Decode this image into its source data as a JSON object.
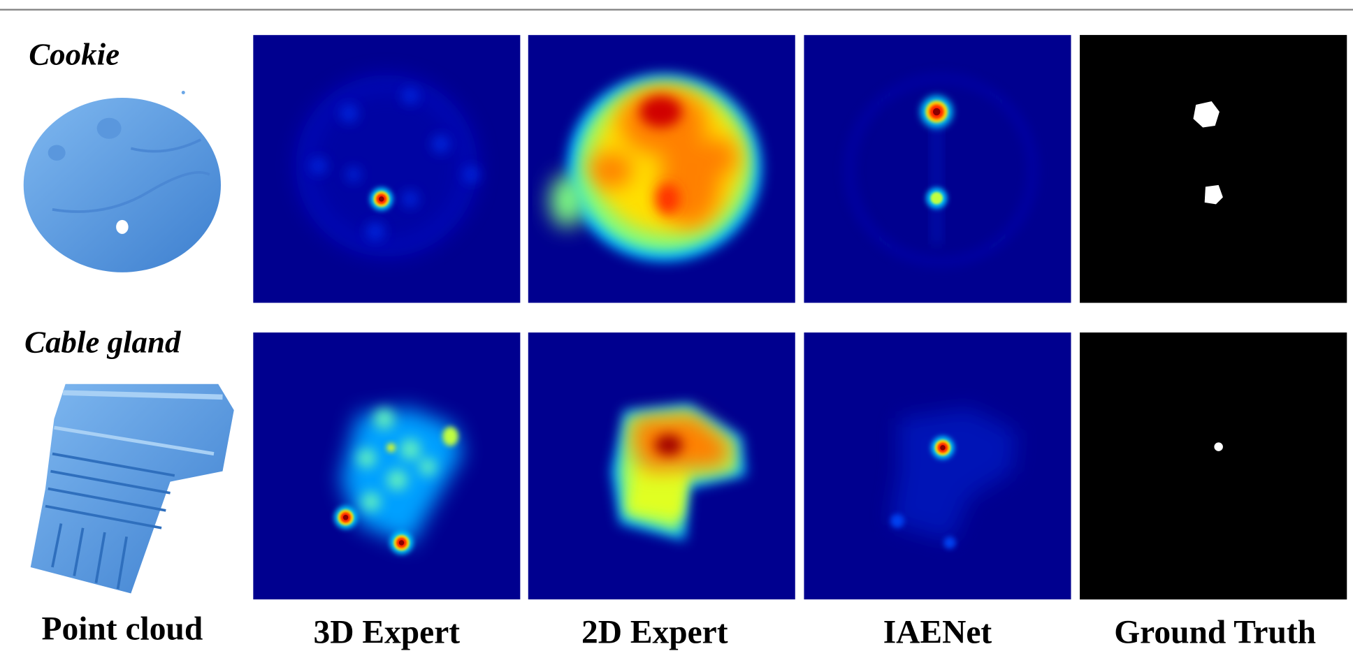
{
  "rows": [
    {
      "label": "Cookie"
    },
    {
      "label": "Cable gland"
    }
  ],
  "columns": [
    "Point cloud",
    "3D Expert",
    "2D Expert",
    "IAENet",
    "Ground Truth"
  ]
}
